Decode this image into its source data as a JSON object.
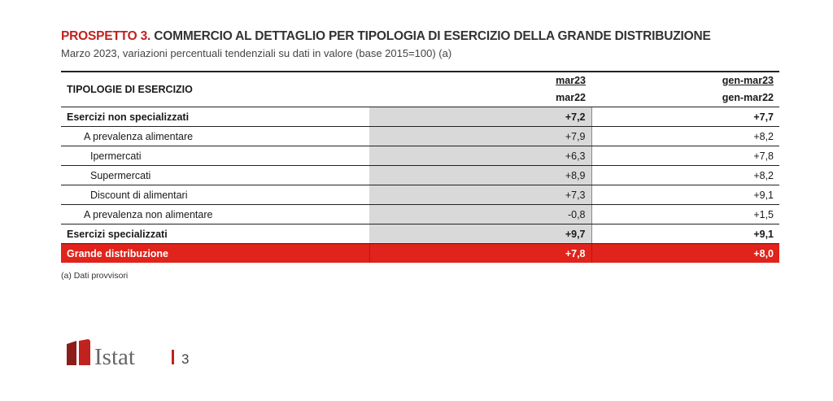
{
  "header": {
    "label": "PROSPETTO 3.",
    "title": "COMMERCIO AL DETTAGLIO PER TIPOLOGIA DI ESERCIZIO DELLA GRANDE DISTRIBUZIONE",
    "subtitle": "Marzo 2023, variazioni percentuali tendenziali su dati in valore (base 2015=100) (a)"
  },
  "table": {
    "columns": [
      "TIPOLOGIE DI ESERCIZIO",
      {
        "top": "mar23",
        "bottom": "mar22"
      },
      {
        "top": "gen-mar23",
        "bottom": "gen-mar22"
      }
    ],
    "rows": [
      [
        "Esercizi non specializzati",
        "+7,2",
        "+7,7"
      ],
      [
        "A prevalenza alimentare",
        "+7,9",
        "+8,2"
      ],
      [
        "Ipermercati",
        "+6,3",
        "+7,8"
      ],
      [
        "Supermercati",
        "+8,9",
        "+8,2"
      ],
      [
        "Discount di alimentari",
        "+7,3",
        "+9,1"
      ],
      [
        "A prevalenza non alimentare",
        "-0,8",
        "+1,5"
      ],
      [
        "Esercizi specializzati",
        "+9,7",
        "+9,1"
      ],
      [
        "Grande distribuzione",
        "+7,8",
        "+8,0"
      ]
    ]
  },
  "footnote": "(a) Dati provvisori",
  "footer": {
    "brand": "Istat",
    "page": "3"
  }
}
